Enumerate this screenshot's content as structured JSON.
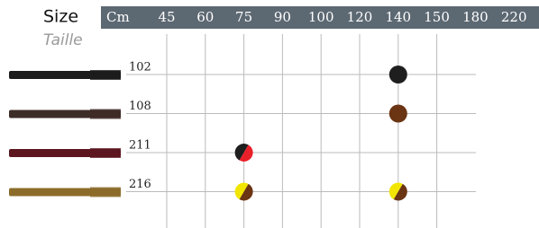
{
  "header": {
    "title": "Size",
    "subtitle": "Taille",
    "unit": "Cm",
    "columns": [
      "45",
      "60",
      "75",
      "90",
      "100",
      "120",
      "140",
      "150",
      "180",
      "220"
    ]
  },
  "rows": [
    {
      "code": "102",
      "lace_color": "#1c1c1c",
      "dots": [
        {
          "column": 6,
          "colors": [
            "#1e1e1e"
          ]
        }
      ]
    },
    {
      "code": "108",
      "lace_color": "#3e2c27",
      "dots": [
        {
          "column": 6,
          "colors": [
            "#6b3412"
          ]
        }
      ]
    },
    {
      "code": "211",
      "lace_color": "#5c1620",
      "dots": [
        {
          "column": 2,
          "colors": [
            "#1e1e1e",
            "#e8202a"
          ]
        }
      ]
    },
    {
      "code": "216",
      "lace_color": "#8c6c2a",
      "dots": [
        {
          "column": 2,
          "colors": [
            "#f2e600",
            "#6b3412"
          ]
        },
        {
          "column": 6,
          "colors": [
            "#f2e600",
            "#6b3412"
          ]
        }
      ]
    }
  ]
}
